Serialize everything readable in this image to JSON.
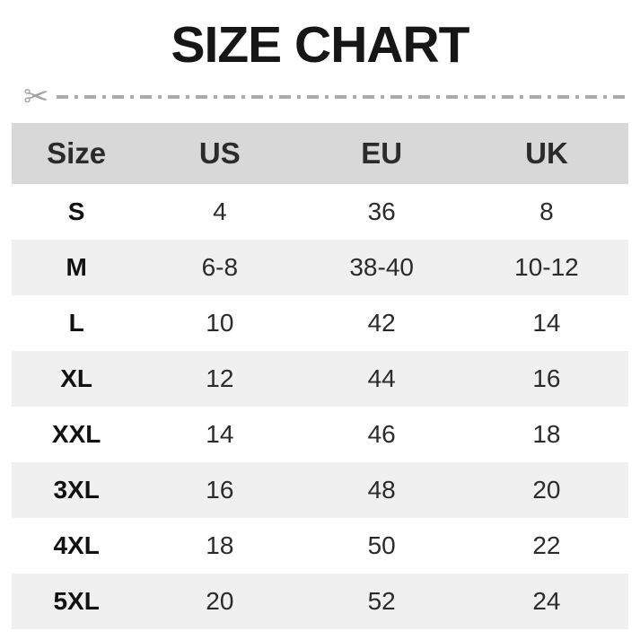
{
  "title": "SIZE CHART",
  "icons": {
    "scissors": "✂"
  },
  "colors": {
    "header_bg": "#d8d8d8",
    "alt_row_bg": "#f0f0f0",
    "row_bg": "#ffffff",
    "title_text": "#161616",
    "value_text": "#2b2b2b",
    "cutline_gray": "#ababab"
  },
  "chart_data": {
    "type": "table",
    "title": "SIZE CHART",
    "columns": [
      "Size",
      "US",
      "EU",
      "UK"
    ],
    "rows": [
      [
        "S",
        "4",
        "36",
        "8"
      ],
      [
        "M",
        "6-8",
        "38-40",
        "10-12"
      ],
      [
        "L",
        "10",
        "42",
        "14"
      ],
      [
        "XL",
        "12",
        "44",
        "16"
      ],
      [
        "XXL",
        "14",
        "46",
        "18"
      ],
      [
        "3XL",
        "16",
        "48",
        "20"
      ],
      [
        "4XL",
        "18",
        "50",
        "22"
      ],
      [
        "5XL",
        "20",
        "52",
        "24"
      ]
    ]
  }
}
